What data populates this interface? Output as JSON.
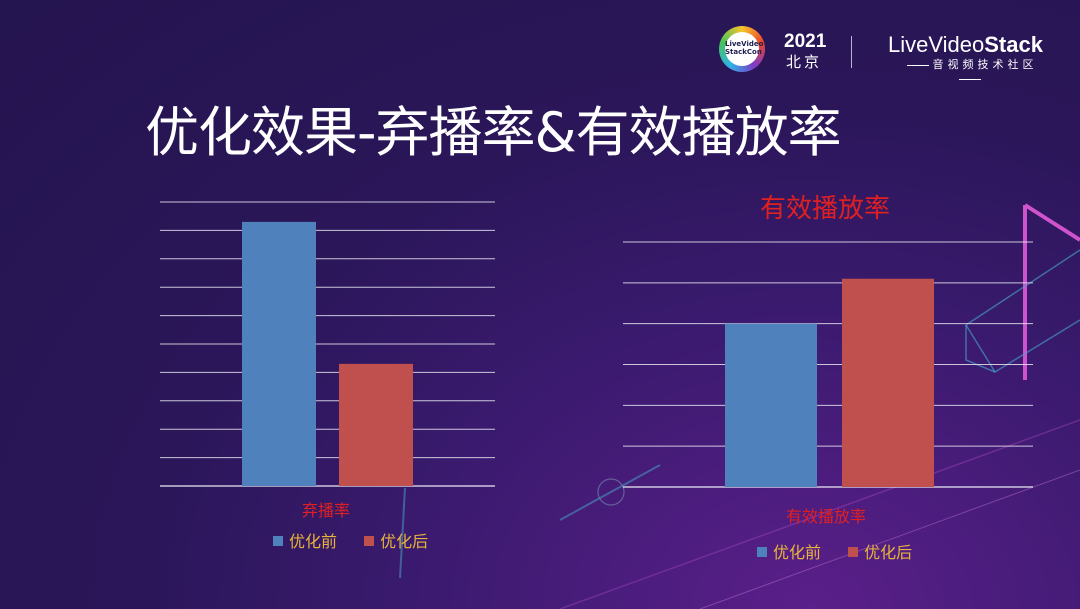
{
  "header": {
    "event_logo_text": "LiveVideo StackCon",
    "year": "2021",
    "city": "北京",
    "brand_prefix": "Live",
    "brand_video": "Video",
    "brand_stack": "Stack",
    "brand_sub": "音视频技术社区"
  },
  "slide_title": "优化效果-弃播率&有效播放率",
  "colors": {
    "before": "#4f81bd",
    "after": "#c0504d",
    "grid": "#e8e6f2",
    "label_red": "#e02020",
    "legend_text": "#e9b43a"
  },
  "chart_data": [
    {
      "type": "bar",
      "title": "",
      "categories": [
        "弃播率"
      ],
      "series": [
        {
          "name": "优化前",
          "values": [
            9.3
          ]
        },
        {
          "name": "优化后",
          "values": [
            4.3
          ]
        }
      ],
      "ylim": [
        0,
        10
      ],
      "grid": true,
      "legend": "bottom"
    },
    {
      "type": "bar",
      "title": "有效播放率",
      "categories": [
        "有效播放率"
      ],
      "series": [
        {
          "name": "优化前",
          "values": [
            4.0
          ]
        },
        {
          "name": "优化后",
          "values": [
            5.1
          ]
        }
      ],
      "ylim": [
        0,
        6
      ],
      "grid": true,
      "legend": "bottom"
    }
  ]
}
